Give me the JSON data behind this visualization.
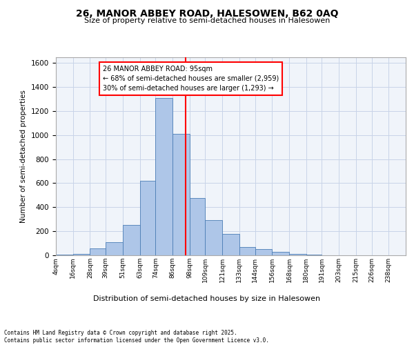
{
  "title1": "26, MANOR ABBEY ROAD, HALESOWEN, B62 0AQ",
  "title2": "Size of property relative to semi-detached houses in Halesowen",
  "xlabel": "Distribution of semi-detached houses by size in Halesowen",
  "ylabel": "Number of semi-detached properties",
  "property_label": "26 MANOR ABBEY ROAD: 95sqm",
  "pct_smaller": 68,
  "count_smaller": 2959,
  "pct_larger": 30,
  "count_larger": 1293,
  "bin_labels": [
    "4sqm",
    "16sqm",
    "28sqm",
    "39sqm",
    "51sqm",
    "63sqm",
    "74sqm",
    "86sqm",
    "98sqm",
    "109sqm",
    "121sqm",
    "133sqm",
    "144sqm",
    "156sqm",
    "168sqm",
    "180sqm",
    "191sqm",
    "203sqm",
    "215sqm",
    "226sqm",
    "238sqm"
  ],
  "bin_edges": [
    4,
    16,
    28,
    39,
    51,
    63,
    74,
    86,
    98,
    109,
    121,
    133,
    144,
    156,
    168,
    180,
    191,
    203,
    215,
    226,
    238,
    250
  ],
  "bar_heights": [
    5,
    10,
    60,
    110,
    255,
    620,
    1310,
    1010,
    475,
    295,
    180,
    70,
    50,
    28,
    12,
    5,
    0,
    2,
    0,
    0,
    0
  ],
  "bar_color": "#aec6e8",
  "bar_edge_color": "#4a7db5",
  "vline_x": 95,
  "vline_color": "red",
  "ylim": [
    0,
    1650
  ],
  "yticks": [
    0,
    200,
    400,
    600,
    800,
    1000,
    1200,
    1400,
    1600
  ],
  "footer_line1": "Contains HM Land Registry data © Crown copyright and database right 2025.",
  "footer_line2": "Contains public sector information licensed under the Open Government Licence v3.0.",
  "bg_color": "#f0f4fa",
  "grid_color": "#c8d4e8"
}
